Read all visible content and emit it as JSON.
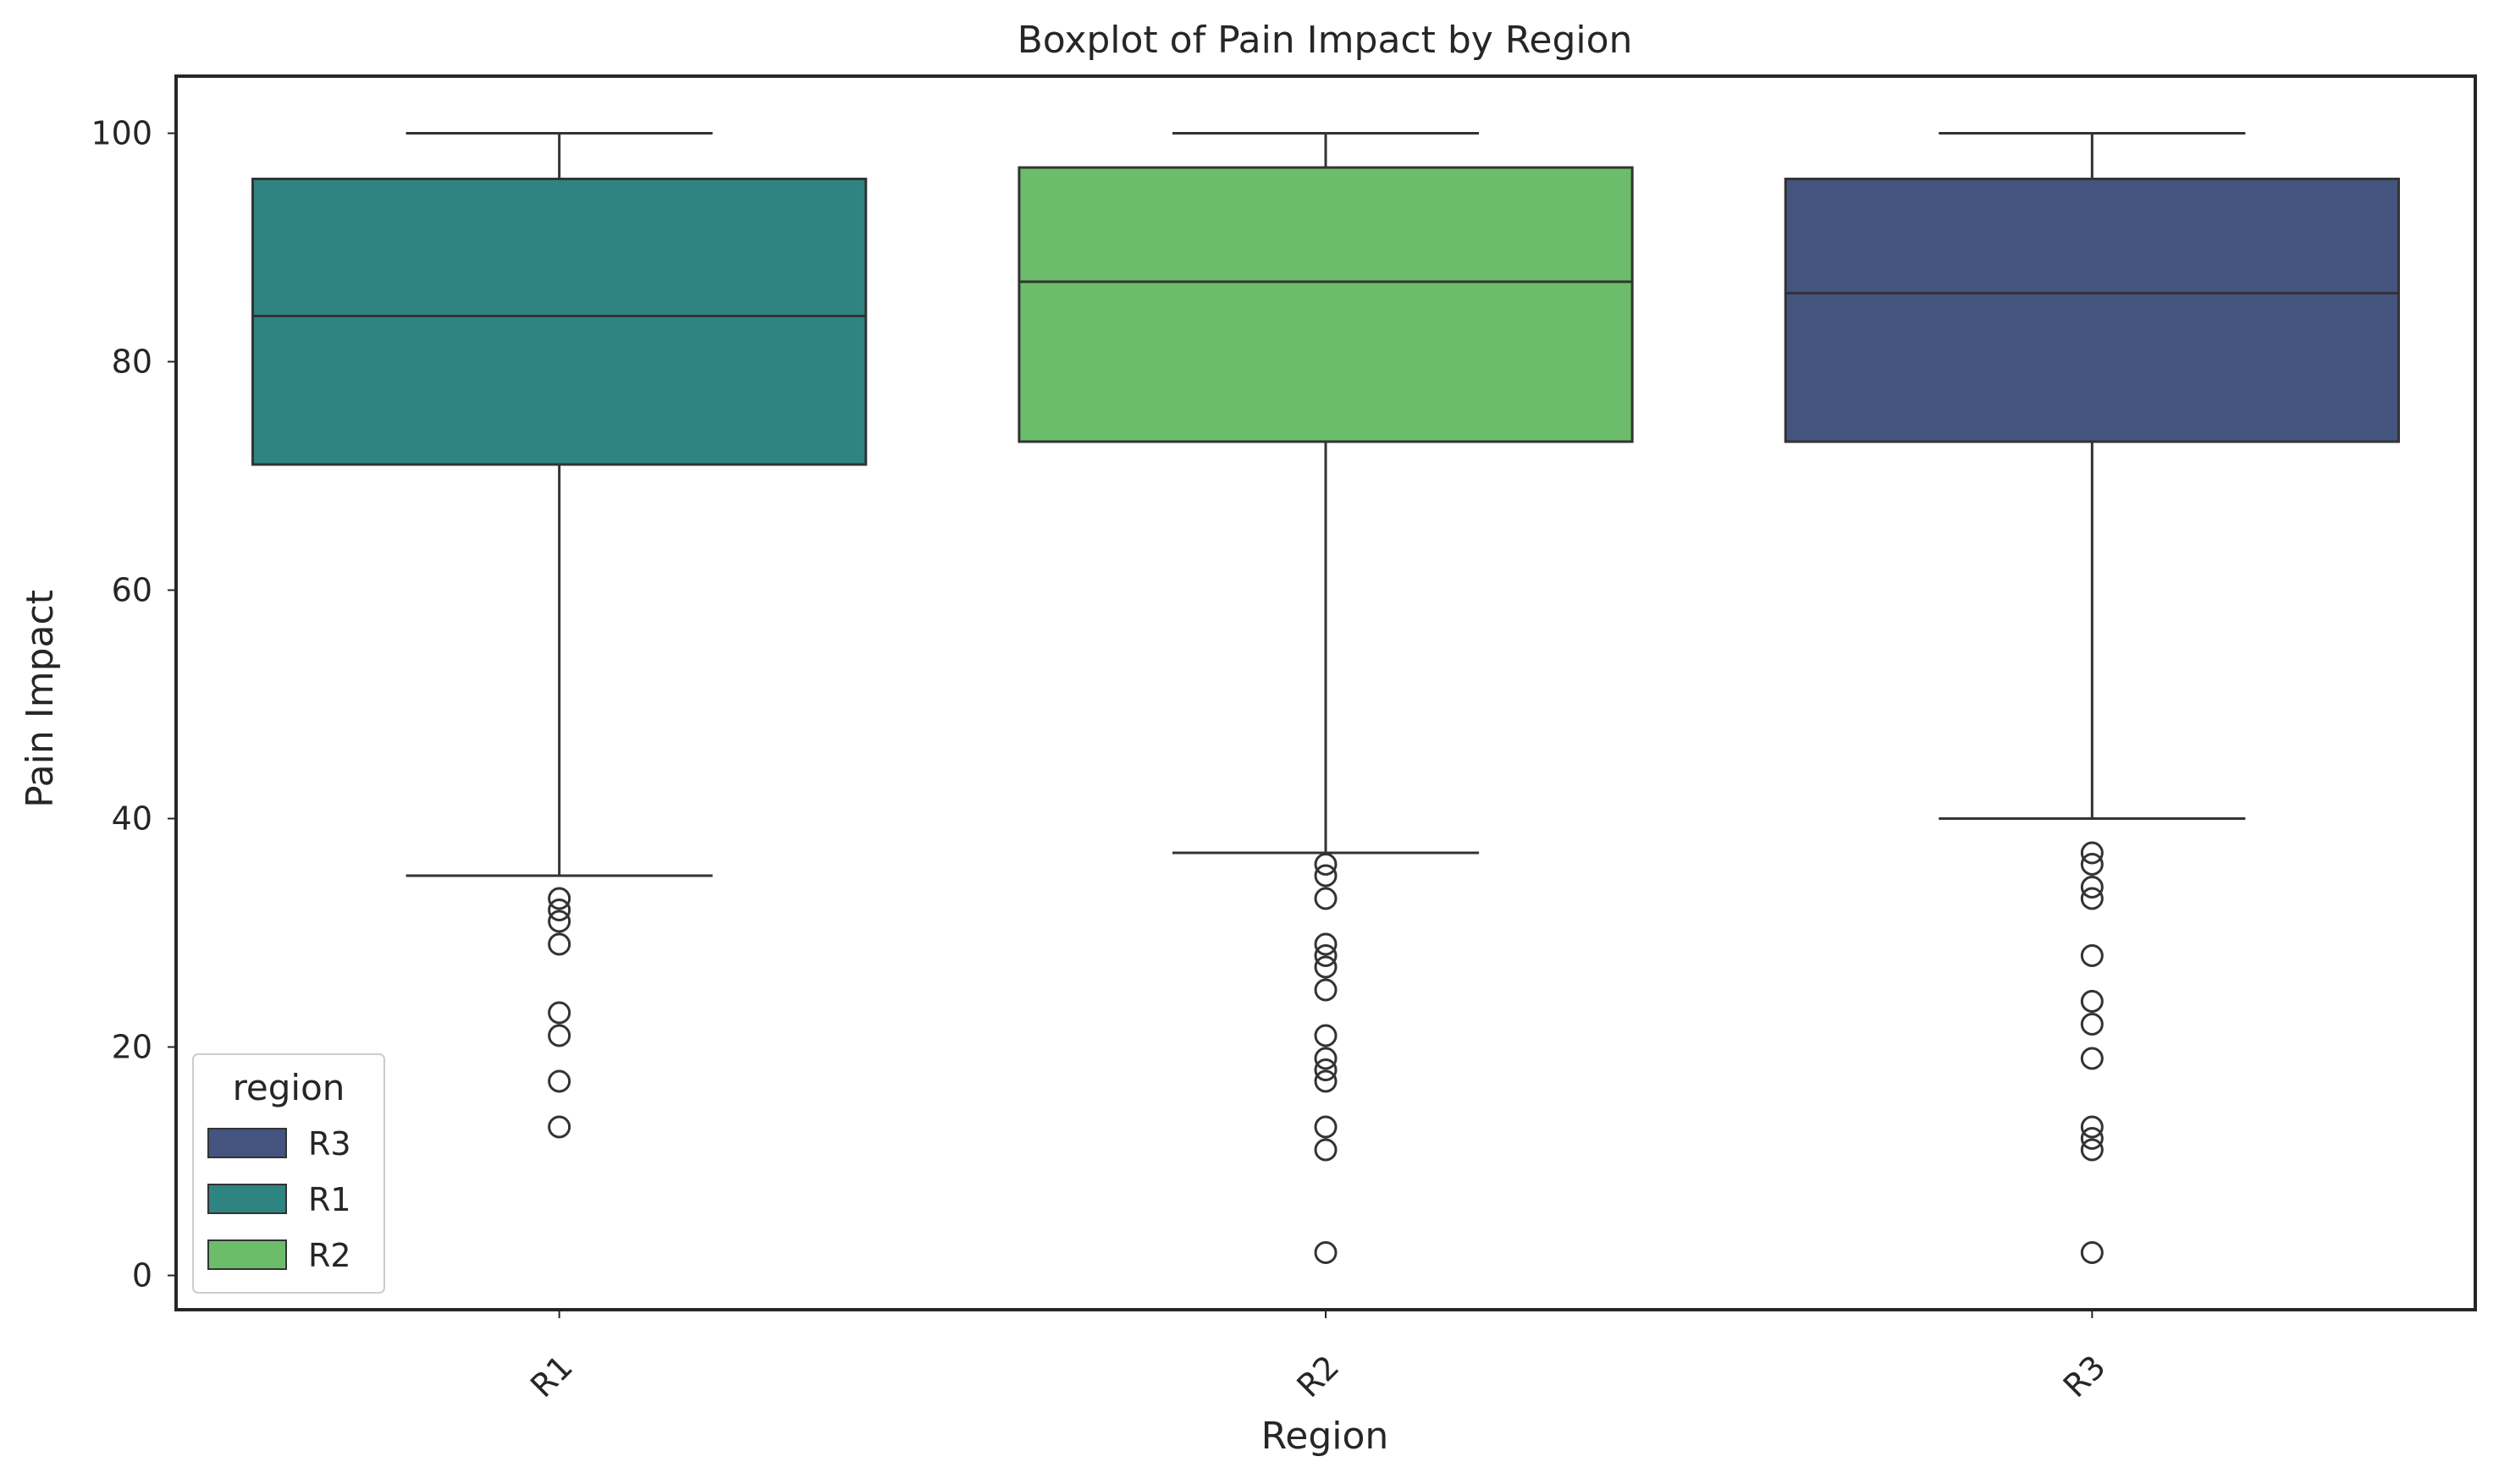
{
  "chart_data": {
    "type": "box",
    "title": "Boxplot of Pain Impact by Region",
    "xlabel": "Region",
    "ylabel": "Pain Impact",
    "ylim": [
      -3,
      105
    ],
    "yticks": [
      0,
      20,
      40,
      60,
      80,
      100
    ],
    "ytick_labels": [
      "0",
      "20",
      "40",
      "60",
      "80",
      "100"
    ],
    "grid": false,
    "categories": [
      "R1",
      "R2",
      "R3"
    ],
    "boxes": [
      {
        "category": "R1",
        "color": "#2e8480",
        "whisker_low": 35,
        "q1": 71,
        "median": 84,
        "q3": 96,
        "whisker_high": 100,
        "outliers": [
          33,
          32,
          31,
          29,
          23,
          21,
          17,
          13
        ]
      },
      {
        "category": "R2",
        "color": "#6bbd6b",
        "whisker_low": 37,
        "q1": 73,
        "median": 87,
        "q3": 97,
        "whisker_high": 100,
        "outliers": [
          36,
          35,
          33,
          29,
          28,
          27,
          25,
          21,
          19,
          18,
          17,
          13,
          11,
          2
        ]
      },
      {
        "category": "R3",
        "color": "#43547f",
        "whisker_low": 40,
        "q1": 73,
        "median": 86,
        "q3": 96,
        "whisker_high": 100,
        "outliers": [
          37,
          36,
          34,
          33,
          28,
          24,
          22,
          19,
          13,
          12,
          11,
          2
        ]
      }
    ],
    "legend": {
      "title": "region",
      "placement": "bottom-left",
      "entries": [
        {
          "label": "R3",
          "color": "#43547f"
        },
        {
          "label": "R1",
          "color": "#2e8480"
        },
        {
          "label": "R2",
          "color": "#6bbd6b"
        }
      ]
    }
  }
}
